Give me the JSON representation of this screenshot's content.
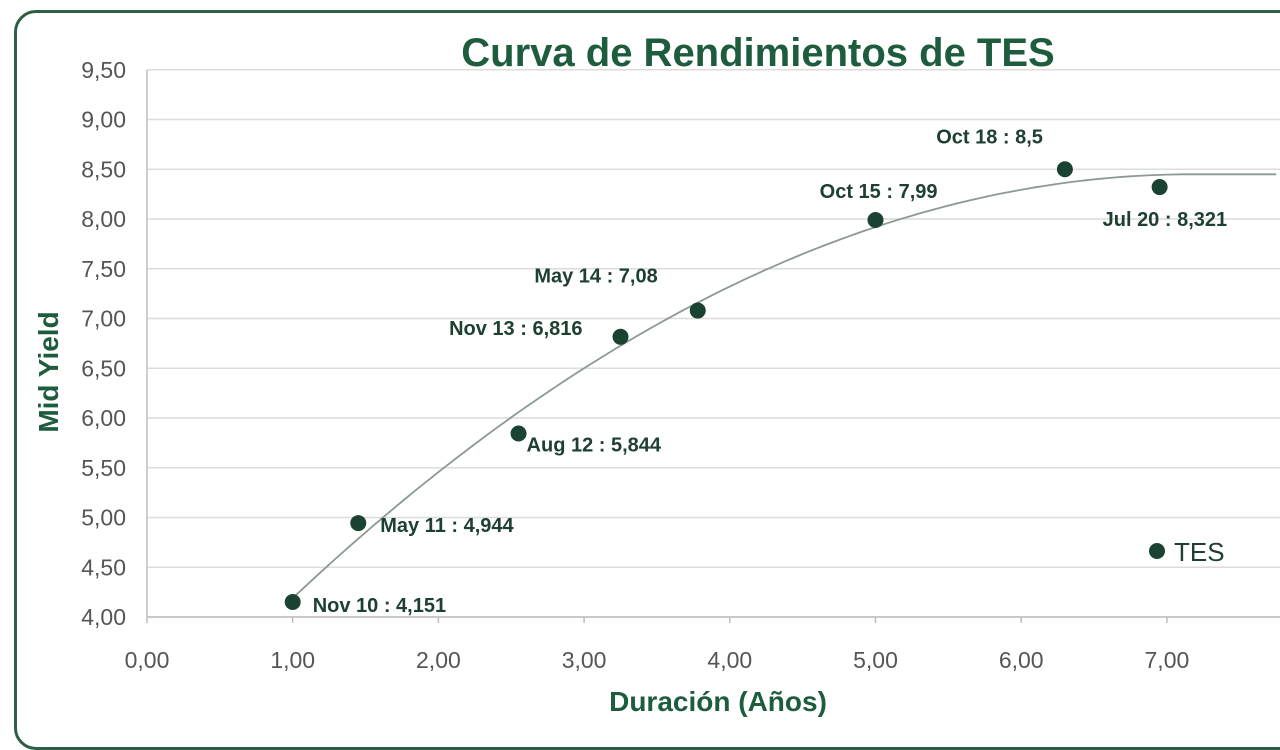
{
  "colors": {
    "title": "#1e5c3e",
    "axis_title": "#1e5c3e",
    "marker": "#1b4332",
    "label": "#1e4030",
    "tick": "#555555",
    "grid": "#dcdcdc",
    "trend": "#8c9a90",
    "frame": "#2e5e44"
  },
  "chart_data": {
    "type": "scatter",
    "title": "Curva de Rendimientos de TES",
    "xlabel": "Duración (Años)",
    "ylabel": "Mid Yield",
    "xlim": [
      0,
      7.8
    ],
    "ylim": [
      4.0,
      9.5
    ],
    "x_ticks": [
      "0,00",
      "1,00",
      "2,00",
      "3,00",
      "4,00",
      "5,00",
      "6,00",
      "7,00"
    ],
    "y_ticks": [
      "4,00",
      "4,50",
      "5,00",
      "5,50",
      "6,00",
      "6,50",
      "7,00",
      "7,50",
      "8,00",
      "8,50",
      "9,00",
      "9,50"
    ],
    "grid": true,
    "legend": {
      "position": "bottom-right",
      "entries": [
        "TES"
      ]
    },
    "trendline": "polynomial",
    "series": [
      {
        "name": "TES",
        "points": [
          {
            "x": 1.0,
            "y": 4.151,
            "label": "Nov 10 : 4,151"
          },
          {
            "x": 1.45,
            "y": 4.944,
            "label": "May 11 : 4,944"
          },
          {
            "x": 2.55,
            "y": 5.844,
            "label": "Aug 12 : 5,844"
          },
          {
            "x": 3.25,
            "y": 6.816,
            "label": "Nov 13 : 6,816"
          },
          {
            "x": 3.78,
            "y": 7.08,
            "label": "May 14 : 7,08"
          },
          {
            "x": 5.0,
            "y": 7.99,
            "label": "Oct 15 : 7,99"
          },
          {
            "x": 6.3,
            "y": 8.5,
            "label": "Oct 18 : 8,5"
          },
          {
            "x": 6.95,
            "y": 8.321,
            "label": "Jul 20 : 8,321"
          }
        ]
      }
    ]
  }
}
